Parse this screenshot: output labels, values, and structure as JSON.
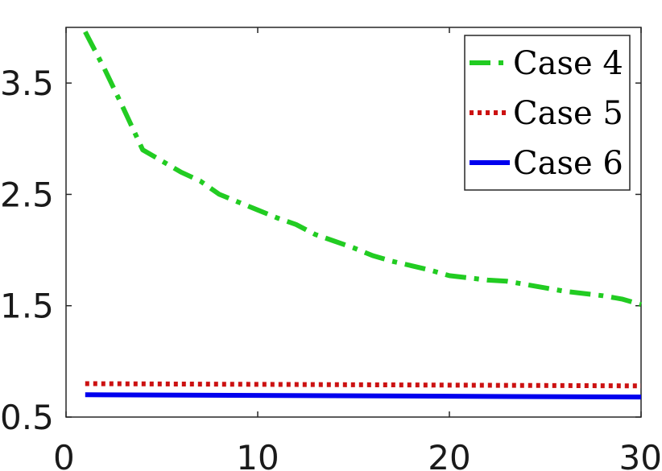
{
  "chart_data": {
    "type": "line",
    "title": "",
    "xlabel": "",
    "ylabel": "",
    "xlim": [
      0,
      30
    ],
    "ylim": [
      0.5,
      4.0
    ],
    "xticks": [
      0,
      10,
      20,
      30
    ],
    "yticks": [
      0.5,
      1.5,
      2.5,
      3.5
    ],
    "xtick_labels": [
      "0",
      "10",
      "20",
      "30"
    ],
    "ytick_labels": [
      "0.5",
      "1.5",
      "2.5",
      "3.5"
    ],
    "grid": false,
    "legend_position": "top-right",
    "series": [
      {
        "name": "Case 4",
        "color": "#22cc22",
        "style": "dashdot",
        "x": [
          1,
          2,
          3,
          4,
          5,
          6,
          7,
          8,
          9,
          10,
          11,
          12,
          13,
          14,
          15,
          16,
          17,
          18,
          19,
          20,
          21,
          22,
          23,
          24,
          25,
          26,
          27,
          28,
          29,
          30
        ],
        "values": [
          3.96,
          3.63,
          3.27,
          2.9,
          2.8,
          2.7,
          2.62,
          2.5,
          2.43,
          2.36,
          2.29,
          2.23,
          2.14,
          2.08,
          2.02,
          1.95,
          1.9,
          1.86,
          1.82,
          1.77,
          1.75,
          1.73,
          1.72,
          1.69,
          1.66,
          1.63,
          1.61,
          1.59,
          1.56,
          1.51
        ]
      },
      {
        "name": "Case 5",
        "color": "#cc1111",
        "style": "dotted",
        "x": [
          1,
          30
        ],
        "values": [
          0.8,
          0.78
        ]
      },
      {
        "name": "Case 6",
        "color": "#0000ee",
        "style": "solid",
        "x": [
          1,
          30
        ],
        "values": [
          0.7,
          0.68
        ]
      }
    ]
  }
}
